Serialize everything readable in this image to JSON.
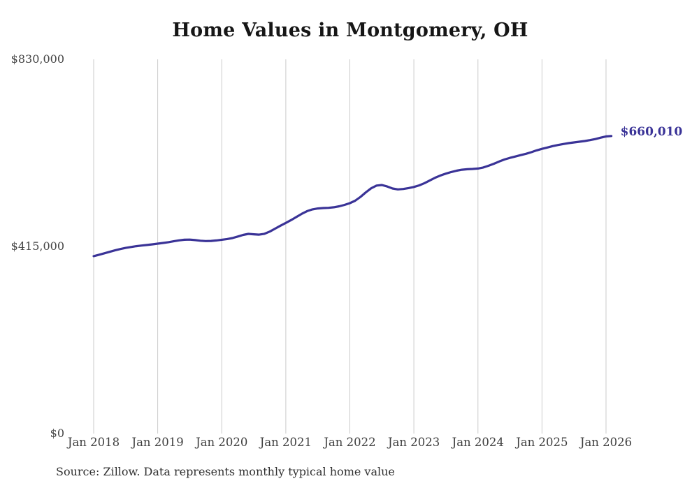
{
  "title": "Home Values in Montgomery, OH",
  "source_note": "Source: Zillow. Data represents monthly typical home value",
  "chart_data": {
    "type": "line",
    "title": "Home Values in Montgomery, OH",
    "series_name": "Monthly typical home value",
    "unit": "USD",
    "ylim": [
      0,
      830000
    ],
    "y_tick_labels": [
      "$0",
      "$415,000",
      "$830,000"
    ],
    "y_tick_values": [
      0,
      415000,
      830000
    ],
    "x_tick_labels": [
      "Jan 2018",
      "Jan 2019",
      "Jan 2020",
      "Jan 2021",
      "Jan 2022",
      "Jan 2023",
      "Jan 2024",
      "Jan 2025",
      "Jan 2026"
    ],
    "end_label": "$660,010",
    "end_value": 660010,
    "line_color": "#3a3397",
    "grid_color": "#cbcbcb",
    "grid_on": true,
    "legend_position": "none",
    "months": [
      "2018-01",
      "2018-02",
      "2018-03",
      "2018-04",
      "2018-05",
      "2018-06",
      "2018-07",
      "2018-08",
      "2018-09",
      "2018-10",
      "2018-11",
      "2018-12",
      "2019-01",
      "2019-02",
      "2019-03",
      "2019-04",
      "2019-05",
      "2019-06",
      "2019-07",
      "2019-08",
      "2019-09",
      "2019-10",
      "2019-11",
      "2019-12",
      "2020-01",
      "2020-02",
      "2020-03",
      "2020-04",
      "2020-05",
      "2020-06",
      "2020-07",
      "2020-08",
      "2020-09",
      "2020-10",
      "2020-11",
      "2020-12",
      "2021-01",
      "2021-02",
      "2021-03",
      "2021-04",
      "2021-05",
      "2021-06",
      "2021-07",
      "2021-08",
      "2021-09",
      "2021-10",
      "2021-11",
      "2021-12",
      "2022-01",
      "2022-02",
      "2022-03",
      "2022-04",
      "2022-05",
      "2022-06",
      "2022-07",
      "2022-08",
      "2022-09",
      "2022-10",
      "2022-11",
      "2022-12",
      "2023-01",
      "2023-02",
      "2023-03",
      "2023-04",
      "2023-05",
      "2023-06",
      "2023-07",
      "2023-08",
      "2023-09",
      "2023-10",
      "2023-11",
      "2023-12",
      "2024-01",
      "2024-02",
      "2024-03",
      "2024-04",
      "2024-05",
      "2024-06",
      "2024-07",
      "2024-08",
      "2024-09",
      "2024-10",
      "2024-11",
      "2024-12",
      "2025-01",
      "2025-02",
      "2025-03",
      "2025-04",
      "2025-05",
      "2025-06",
      "2025-07",
      "2025-08",
      "2025-09",
      "2025-10",
      "2025-11",
      "2025-12",
      "2026-01",
      "2026-02"
    ],
    "values": [
      393500,
      396500,
      399800,
      403000,
      406300,
      409300,
      411800,
      413800,
      415600,
      417000,
      418300,
      419700,
      421200,
      422700,
      424400,
      426500,
      428500,
      429900,
      430100,
      429100,
      427700,
      426900,
      427200,
      428300,
      429800,
      431400,
      433600,
      437000,
      440600,
      442800,
      442000,
      441200,
      443000,
      448000,
      454500,
      461000,
      467200,
      473500,
      480500,
      487500,
      493400,
      497300,
      499300,
      500200,
      500700,
      501800,
      504000,
      507200,
      511000,
      516500,
      525000,
      535000,
      544000,
      550000,
      551200,
      548000,
      543500,
      541500,
      542500,
      544500,
      547000,
      550500,
      555500,
      561500,
      567500,
      572500,
      576500,
      580000,
      583000,
      585200,
      586200,
      586900,
      587800,
      590200,
      594000,
      598500,
      603500,
      608000,
      611500,
      614500,
      617500,
      620500,
      624000,
      628000,
      631500,
      634500,
      637500,
      640000,
      642200,
      644200,
      645700,
      647200,
      648800,
      650800,
      653200,
      656200,
      659000,
      660010
    ]
  }
}
